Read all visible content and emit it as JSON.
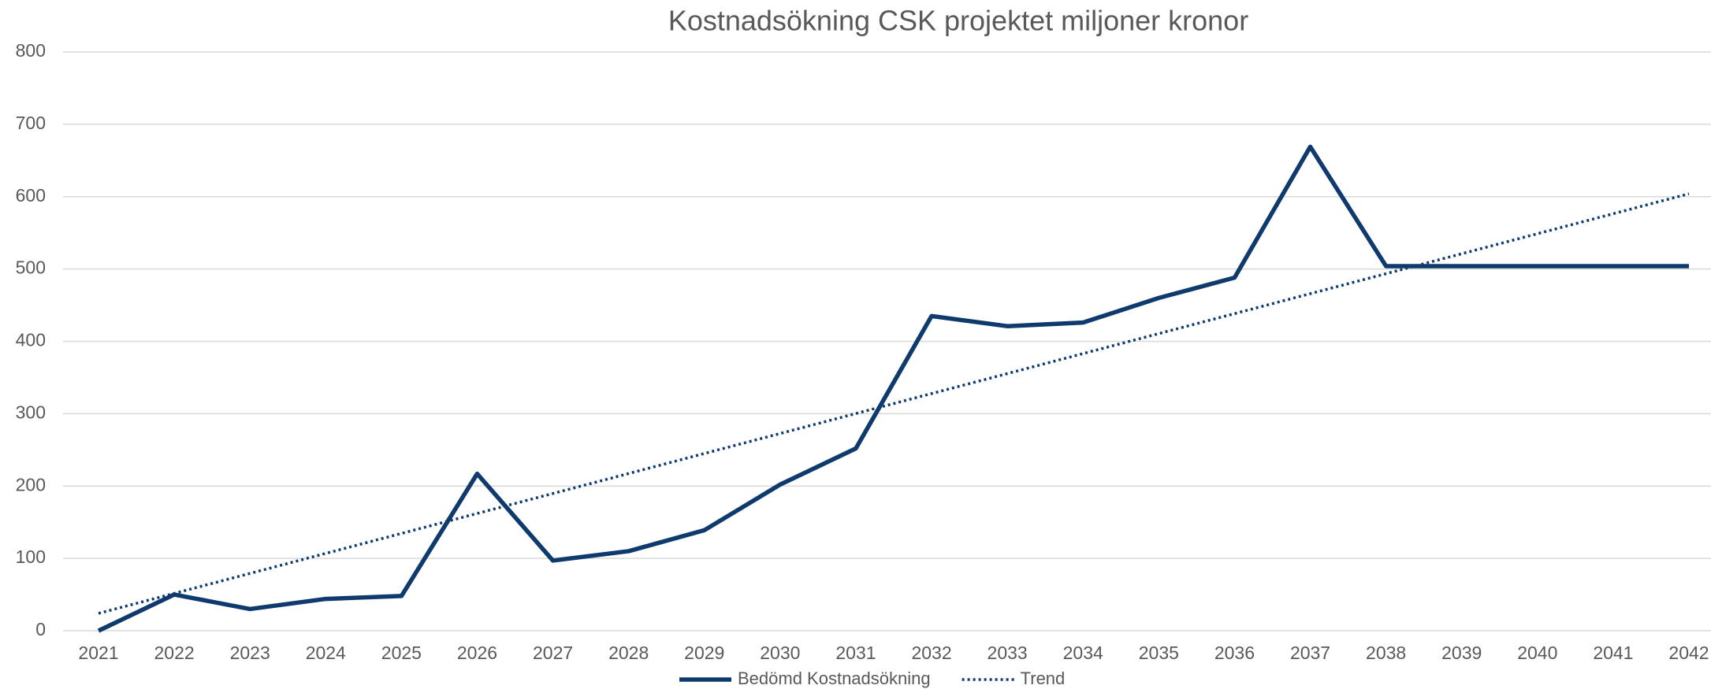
{
  "chart_data": {
    "type": "line",
    "title": "Kostnadsökning CSK projektet miljoner kronor",
    "categories": [
      "2021",
      "2022",
      "2023",
      "2024",
      "2025",
      "2026",
      "2027",
      "2028",
      "2029",
      "2030",
      "2031",
      "2032",
      "2033",
      "2034",
      "2035",
      "2036",
      "2037",
      "2038",
      "2039",
      "2040",
      "2041",
      "2042"
    ],
    "series": [
      {
        "name": "Bedömd Kostnadsökning",
        "color": "#0e3a6e",
        "style": "solid",
        "values": [
          0,
          50,
          30,
          44,
          48,
          217,
          97,
          110,
          139,
          202,
          252,
          435,
          421,
          426,
          460,
          488,
          669,
          504,
          504,
          504,
          504,
          504
        ]
      },
      {
        "name": "Trend",
        "color": "#0e3a6e",
        "style": "dotted",
        "values": [
          24,
          51.6,
          79.2,
          106.9,
          134.5,
          162.1,
          189.7,
          217.3,
          245,
          272.6,
          300.2,
          327.8,
          355.4,
          383.1,
          410.7,
          438.3,
          465.9,
          493.5,
          521.1,
          548.8,
          576.4,
          604
        ]
      }
    ],
    "ylim": [
      0,
      800
    ],
    "yticks": [
      0,
      100,
      200,
      300,
      400,
      500,
      600,
      700,
      800
    ],
    "grid": true,
    "legend": "bottom"
  }
}
